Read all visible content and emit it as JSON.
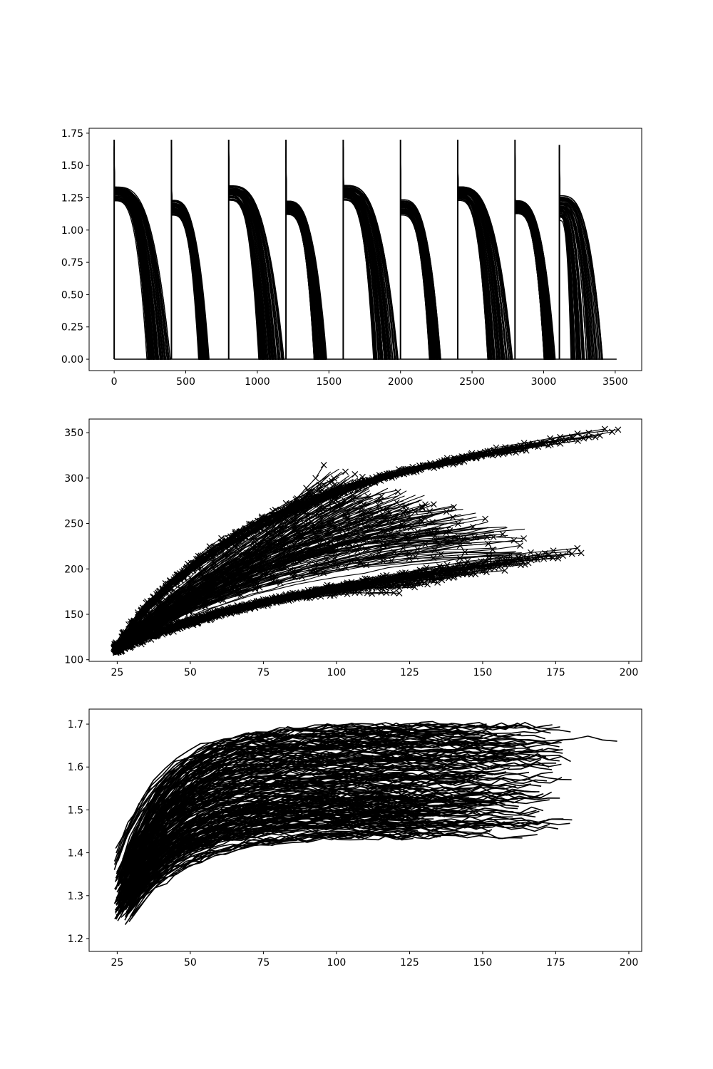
{
  "chart_data": [
    {
      "type": "line",
      "title": "",
      "xlabel": "",
      "ylabel": "",
      "xlim": [
        -175,
        3685
      ],
      "ylim": [
        -0.088,
        1.788
      ],
      "xticks": [
        0,
        500,
        1000,
        1500,
        2000,
        2500,
        3000,
        3500
      ],
      "yticks": [
        0.0,
        0.25,
        0.5,
        0.75,
        1.0,
        1.25,
        1.5,
        1.75
      ],
      "ytick_decimals": 2,
      "series_color": "#000000",
      "pulses": [
        {
          "start": 0,
          "spike": 1.7,
          "v0_min": 1.2,
          "v0_max": 1.33,
          "end_min": 230,
          "end_max": 390
        },
        {
          "start": 400,
          "spike": 1.7,
          "v0_min": 1.08,
          "v0_max": 1.22,
          "end_min": 590,
          "end_max": 660
        },
        {
          "start": 800,
          "spike": 1.7,
          "v0_min": 1.2,
          "v0_max": 1.33,
          "end_min": 1010,
          "end_max": 1180
        },
        {
          "start": 1200,
          "spike": 1.7,
          "v0_min": 1.08,
          "v0_max": 1.22,
          "end_min": 1390,
          "end_max": 1480
        },
        {
          "start": 1600,
          "spike": 1.7,
          "v0_min": 1.2,
          "v0_max": 1.33,
          "end_min": 1810,
          "end_max": 1985
        },
        {
          "start": 2000,
          "spike": 1.7,
          "v0_min": 1.08,
          "v0_max": 1.22,
          "end_min": 2200,
          "end_max": 2280
        },
        {
          "start": 2400,
          "spike": 1.7,
          "v0_min": 1.2,
          "v0_max": 1.33,
          "end_min": 2610,
          "end_max": 2780
        },
        {
          "start": 2800,
          "spike": 1.7,
          "v0_min": 1.08,
          "v0_max": 1.22,
          "end_min": 3000,
          "end_max": 3075
        },
        {
          "start": 3110,
          "spike": 1.66,
          "v0_min": 1.0,
          "v0_max": 1.25,
          "end_min": 3190,
          "end_max": 3410
        }
      ],
      "tail_end": 3510
    },
    {
      "type": "scatter",
      "title": "",
      "xlabel": "",
      "ylabel": "",
      "marker": "x",
      "xlim": [
        15.4,
        204.4
      ],
      "ylim": [
        98.2,
        365.0
      ],
      "xticks": [
        25,
        50,
        75,
        100,
        125,
        150,
        175,
        200
      ],
      "yticks": [
        100,
        150,
        200,
        250,
        300,
        350
      ],
      "ytick_decimals": 0,
      "series_color": "#000000",
      "upper_family": {
        "start": [
          24,
          112
        ],
        "mid": [
          80,
          278
        ],
        "end_x_range": [
          140,
          196
        ],
        "end_y_range": [
          317,
          353
        ]
      },
      "lower_family": {
        "start": [
          24,
          110
        ],
        "mid": [
          60,
          170
        ],
        "end_x_range": [
          120,
          184
        ],
        "end_y_range": [
          175,
          221
        ]
      },
      "fan_peak": [
        124,
        302
      ],
      "extreme_point": [
        196,
        353
      ],
      "lower_extreme_point": [
        184,
        216
      ]
    },
    {
      "type": "line",
      "title": "",
      "xlabel": "",
      "ylabel": "",
      "xlim": [
        15.4,
        204.4
      ],
      "ylim": [
        1.17,
        1.735
      ],
      "xticks": [
        25,
        50,
        75,
        100,
        125,
        150,
        175,
        200
      ],
      "yticks": [
        1.2,
        1.3,
        1.4,
        1.5,
        1.6,
        1.7
      ],
      "ytick_decimals": 1,
      "series_color": "#000000",
      "band": {
        "start_y_range": [
          1.195,
          1.41
        ],
        "plateau_range": [
          1.44,
          1.7
        ],
        "end_x_range": [
          120,
          196
        ]
      },
      "extreme_series_end": [
        196,
        1.66
      ]
    }
  ]
}
